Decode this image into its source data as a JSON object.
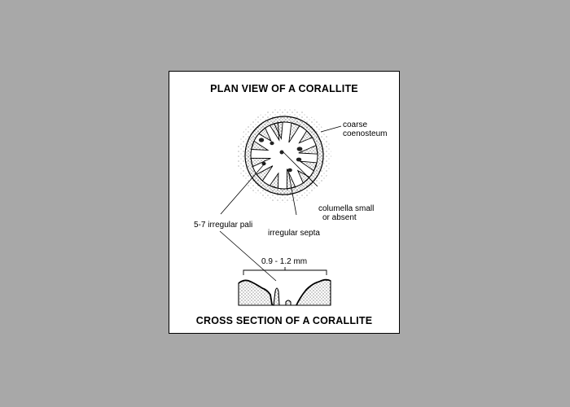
{
  "diagram": {
    "title_plan": "PLAN VIEW OF A CORALLITE",
    "title_section": "CROSS SECTION OF A CORALLITE",
    "labels": {
      "coenosteum_line1": "coarse",
      "coenosteum_line2": "coenosteum",
      "columella_line1": "columella small",
      "columella_line2": "or absent",
      "pali": "5-7 irregular pali",
      "septa": "irregular septa",
      "dimension": "0.9 - 1.2 mm"
    }
  }
}
